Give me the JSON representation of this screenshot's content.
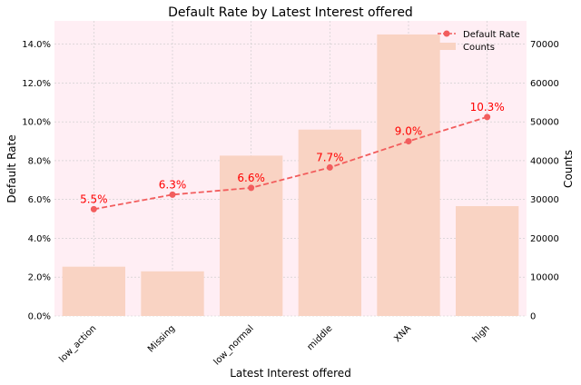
{
  "chart_data": {
    "type": "bar",
    "title": "Default Rate by Latest Interest offered",
    "xlabel": "Latest Interest offered",
    "ylabel": "Default Rate",
    "y2label": "Counts",
    "categories": [
      "low_action",
      "Missing",
      "low_normal",
      "middle",
      "XNA",
      "high"
    ],
    "series": [
      {
        "name": "Counts",
        "type": "bar",
        "axis": "right",
        "values": [
          12700,
          11500,
          41300,
          48000,
          72500,
          28300
        ]
      },
      {
        "name": "Default Rate",
        "type": "line",
        "axis": "left",
        "values": [
          0.055,
          0.0625,
          0.066,
          0.0765,
          0.09,
          0.1025
        ],
        "data_labels": [
          "5.5%",
          "6.3%",
          "6.6%",
          "7.7%",
          "9.0%",
          "10.3%"
        ]
      }
    ],
    "ylim": [
      0,
      0.152
    ],
    "y2lim": [
      0,
      76000
    ],
    "yticks": [
      "0.0%",
      "2.0%",
      "4.0%",
      "6.0%",
      "8.0%",
      "10.0%",
      "12.0%",
      "14.0%"
    ],
    "y2ticks": [
      "0",
      "10000",
      "20000",
      "30000",
      "40000",
      "50000",
      "60000",
      "70000"
    ],
    "grid": true,
    "legend": "top-right",
    "colors": {
      "background": "#ffeef4",
      "bar": "#f9d3c3",
      "line": "#f25d5d",
      "data_label": "#ff0000",
      "grid": "#c9c9c9"
    }
  }
}
